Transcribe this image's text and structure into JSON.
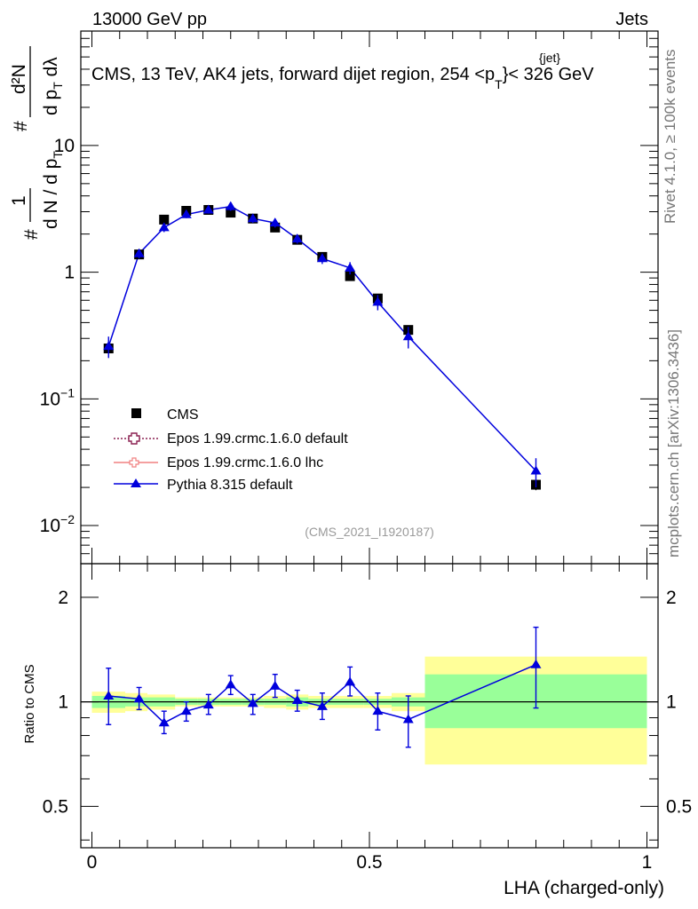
{
  "header": {
    "left": "13000 GeV pp",
    "right": "Jets"
  },
  "title": {
    "main": "CMS, 13 TeV, AK4 jets, forward dijet region, 254 <p",
    "sup": "{jet}",
    "sub": "T",
    "tail": "}< 326 GeV"
  },
  "side_labels": {
    "rivet": "Rivet 4.1.0, ≥ 100k events",
    "mcplots": "mcplots.cern.ch [arXiv:1306.3436]"
  },
  "analysis_ref": "(CMS_2021_I1920187)",
  "colors": {
    "cms": "#000000",
    "epos_default": "#8b2252",
    "epos_lhc": "#f08080",
    "pythia": "#0000dd",
    "band_outer": "#ffff99",
    "band_inner": "#99ff99"
  },
  "legend": [
    {
      "name": "CMS",
      "style": "cms"
    },
    {
      "name": "Epos 1.99.crmc.1.6.0 default",
      "style": "epos_default"
    },
    {
      "name": "Epos 1.99.crmc.1.6.0 lhc",
      "style": "epos_lhc"
    },
    {
      "name": "Pythia 8.315 default",
      "style": "pythia"
    }
  ],
  "chart_data": [
    {
      "type": "line",
      "panel": "main",
      "scale": "log",
      "title": "CMS, 13 TeV, AK4 jets, forward dijet region, 254 <p_T^{jet}< 326 GeV",
      "xlabel": "LHA (charged-only)",
      "ylabel_parts": {
        "num_top": "d²N",
        "num_bottom": "d p",
        "num_bottom_sub": "T",
        "num_bottom_tail": " dλ",
        "den": "d N / d p",
        "den_sub": "T",
        "one": "1",
        "hash": "#"
      },
      "xlim": [
        -0.02,
        1.02
      ],
      "ylim": [
        0.005,
        80
      ],
      "yticks": [
        {
          "value": 0.01,
          "base": "10",
          "exp": "−2"
        },
        {
          "value": 0.1,
          "base": "10",
          "exp": "−1"
        },
        {
          "value": 1,
          "base": "1",
          "exp": ""
        },
        {
          "value": 10,
          "base": "10",
          "exp": ""
        }
      ],
      "series": [
        {
          "name": "CMS",
          "x": [
            0.03,
            0.085,
            0.13,
            0.17,
            0.21,
            0.25,
            0.29,
            0.33,
            0.37,
            0.415,
            0.465,
            0.515,
            0.57,
            0.8
          ],
          "y": [
            0.25,
            1.38,
            2.6,
            3.05,
            3.1,
            2.95,
            2.65,
            2.25,
            1.8,
            1.32,
            0.93,
            0.62,
            0.35,
            0.021
          ],
          "yerr": [
            0.02,
            0.06,
            0.1,
            0.1,
            0.1,
            0.1,
            0.09,
            0.08,
            0.07,
            0.06,
            0.05,
            0.04,
            0.03,
            0.002
          ]
        },
        {
          "name": "Pythia 8.315 default",
          "x": [
            0.03,
            0.085,
            0.13,
            0.17,
            0.21,
            0.25,
            0.29,
            0.33,
            0.37,
            0.415,
            0.465,
            0.515,
            0.57,
            0.8
          ],
          "y": [
            0.26,
            1.4,
            2.25,
            2.85,
            3.1,
            3.3,
            2.65,
            2.45,
            1.83,
            1.28,
            1.08,
            0.58,
            0.31,
            0.027
          ],
          "yerr": [
            0.05,
            0.12,
            0.18,
            0.18,
            0.2,
            0.25,
            0.2,
            0.2,
            0.15,
            0.12,
            0.12,
            0.08,
            0.06,
            0.007
          ]
        }
      ]
    },
    {
      "type": "line",
      "panel": "ratio",
      "ylabel": "Ratio to CMS",
      "xlabel": "LHA (charged-only)",
      "xlim": [
        -0.02,
        1.02
      ],
      "ylim": [
        0.38,
        2.5
      ],
      "yticks": [
        {
          "value": 0.5,
          "label": "0.5"
        },
        {
          "value": 1,
          "label": "1"
        },
        {
          "value": 2,
          "label": "2"
        }
      ],
      "xticks": [
        {
          "value": 0,
          "label": "0"
        },
        {
          "value": 0.5,
          "label": "0.5"
        },
        {
          "value": 1,
          "label": "1"
        }
      ],
      "reference_line": 1,
      "bands": {
        "edges": [
          0,
          0.06,
          0.1,
          0.15,
          0.19,
          0.23,
          0.27,
          0.31,
          0.35,
          0.39,
          0.44,
          0.49,
          0.54,
          0.6,
          1.0
        ],
        "outer_lo": [
          0.93,
          0.94,
          0.95,
          0.97,
          0.97,
          0.97,
          0.97,
          0.96,
          0.95,
          0.96,
          0.96,
          0.96,
          0.94,
          0.66
        ],
        "outer_hi": [
          1.07,
          1.06,
          1.05,
          1.03,
          1.03,
          1.03,
          1.03,
          1.04,
          1.05,
          1.04,
          1.04,
          1.04,
          1.06,
          1.35
        ],
        "inner_lo": [
          0.96,
          0.97,
          0.97,
          0.98,
          0.98,
          0.98,
          0.98,
          0.98,
          0.97,
          0.98,
          0.98,
          0.98,
          0.97,
          0.84
        ],
        "inner_hi": [
          1.04,
          1.03,
          1.03,
          1.02,
          1.02,
          1.02,
          1.02,
          1.02,
          1.03,
          1.02,
          1.02,
          1.02,
          1.03,
          1.2
        ]
      },
      "series": [
        {
          "name": "Pythia 8.315 default",
          "x": [
            0.03,
            0.085,
            0.13,
            0.17,
            0.21,
            0.25,
            0.29,
            0.33,
            0.37,
            0.415,
            0.465,
            0.515,
            0.57,
            0.8
          ],
          "y": [
            1.04,
            1.02,
            0.87,
            0.94,
            0.98,
            1.12,
            0.99,
            1.11,
            1.01,
            0.97,
            1.14,
            0.94,
            0.89,
            1.28
          ],
          "ylo": [
            0.86,
            0.95,
            0.81,
            0.88,
            0.92,
            1.05,
            0.92,
            1.03,
            0.94,
            0.89,
            1.04,
            0.83,
            0.74,
            0.96
          ],
          "yhi": [
            1.25,
            1.1,
            0.94,
            1.0,
            1.05,
            1.19,
            1.05,
            1.2,
            1.08,
            1.06,
            1.26,
            1.06,
            1.04,
            1.64
          ]
        }
      ]
    }
  ]
}
